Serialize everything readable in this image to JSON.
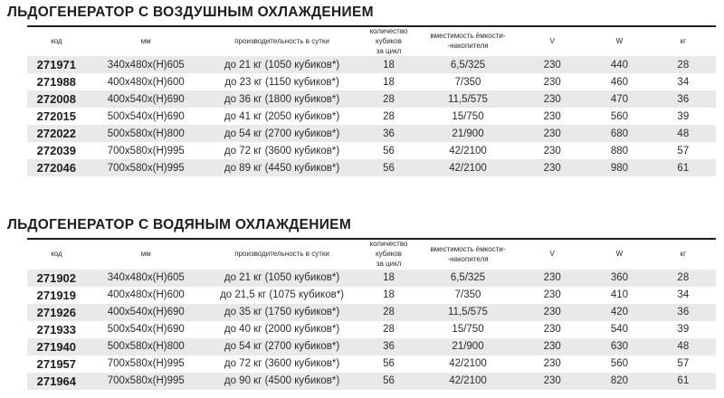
{
  "document": {
    "column_keys": [
      "code",
      "dimensions-mm",
      "capacity-per-day",
      "cubes-per-cycle",
      "bin-capacity",
      "voltage",
      "power",
      "weight"
    ],
    "tables": [
      {
        "title": "ЛЬДОГЕНЕРАТОР С ВОЗДУШНЫМ ОХЛАЖДЕНИЕМ",
        "columns": [
          "код",
          "мм",
          "производительность в сутки",
          "количество кубиков\nза цикл",
          "вместимость ёмкости-\n-накопителя",
          "V",
          "W",
          "кг"
        ],
        "rows": [
          [
            "271971",
            "340x480x(H)605",
            "до 21 кг (1050 кубиков*)",
            "18",
            "6,5/325",
            "230",
            "440",
            "28"
          ],
          [
            "271988",
            "400x480x(H)600",
            "до 23 кг (1150 кубиков*)",
            "18",
            "7/350",
            "230",
            "460",
            "34"
          ],
          [
            "272008",
            "400x540x(H)690",
            "до 36 кг (1800 кубиков*)",
            "28",
            "11,5/575",
            "230",
            "470",
            "36"
          ],
          [
            "272015",
            "500x540x(H)690",
            "до 41 кг (2050 кубиков*)",
            "28",
            "15/750",
            "230",
            "560",
            "39"
          ],
          [
            "272022",
            "500x580x(H)800",
            "до 54 кг (2700 кубиков*)",
            "36",
            "21/900",
            "230",
            "680",
            "48"
          ],
          [
            "272039",
            "700x580x(H)995",
            "до 72 кг (3600 кубиков*)",
            "56",
            "42/2100",
            "230",
            "880",
            "57"
          ],
          [
            "272046",
            "700x580x(H)995",
            "до 89 кг (4450 кубиков*)",
            "56",
            "42/2100",
            "230",
            "980",
            "61"
          ]
        ]
      },
      {
        "title": "ЛЬДОГЕНЕРАТОР С ВОДЯНЫМ ОХЛАЖДЕНИЕМ",
        "columns": [
          "код",
          "мм",
          "производительность в сутки",
          "количество кубиков\nза цикл",
          "вместимость ёмкости-\n-накопителя",
          "V",
          "W",
          "кг"
        ],
        "rows": [
          [
            "271902",
            "340x480x(H)605",
            "до 21 кг (1050 кубиков*)",
            "18",
            "6,5/325",
            "230",
            "360",
            "28"
          ],
          [
            "271919",
            "400x480x(H)600",
            "до 21,5 кг (1075 кубиков*)",
            "18",
            "7/350",
            "230",
            "410",
            "34"
          ],
          [
            "271926",
            "400x540x(H)690",
            "до 35 кг (1750 кубиков*)",
            "28",
            "11,5/575",
            "230",
            "420",
            "36"
          ],
          [
            "271933",
            "500x540x(H)690",
            "до 40 кг (2000 кубиков*)",
            "28",
            "15/750",
            "230",
            "540",
            "39"
          ],
          [
            "271940",
            "500x580x(H)800",
            "до 54 кг (2700 кубиков*)",
            "36",
            "21/900",
            "230",
            "630",
            "48"
          ],
          [
            "271957",
            "700x580x(H)995",
            "до 72 кг (3600 кубиков*)",
            "56",
            "42/2100",
            "230",
            "560",
            "57"
          ],
          [
            "271964",
            "700x580x(H)995",
            "до 90 кг (4500 кубиков*)",
            "56",
            "42/2100",
            "230",
            "820",
            "61"
          ]
        ]
      }
    ]
  },
  "colors": {
    "row_stripe": "#e9e9e9",
    "title_text": "#1d1d1b",
    "body_text": "#2b2b2b",
    "rule": "#1d1d1b",
    "background": "#ffffff"
  }
}
